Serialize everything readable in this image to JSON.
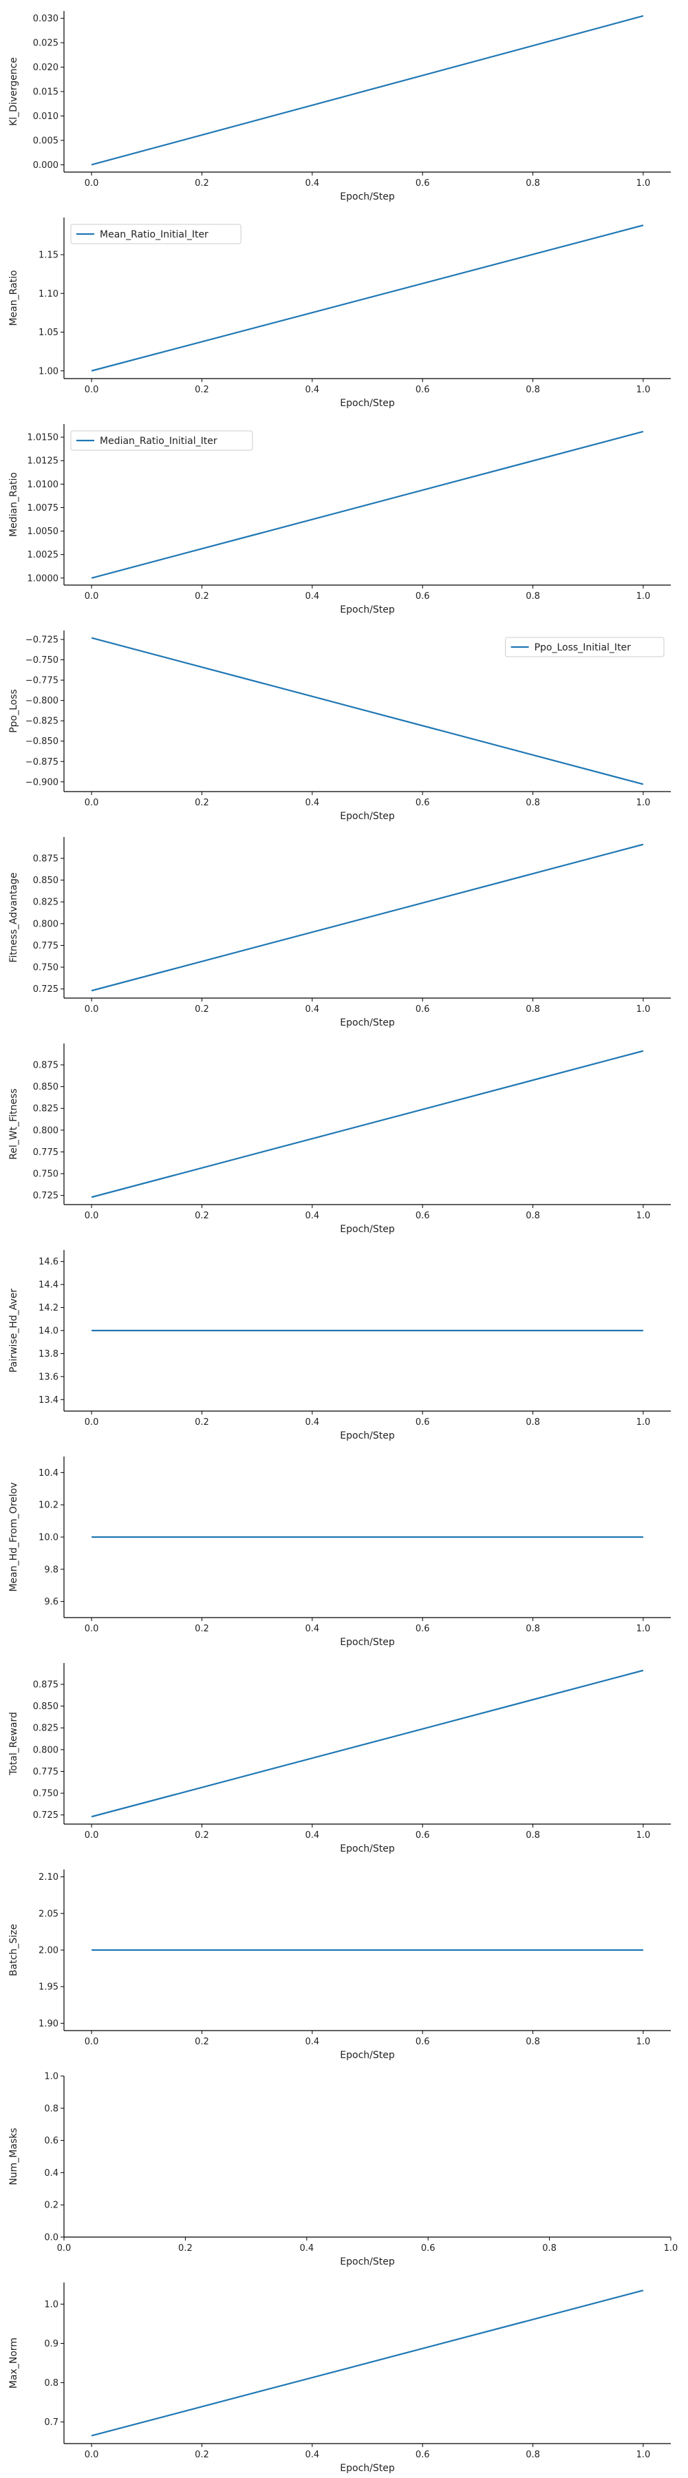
{
  "chart_data": [
    {
      "type": "line",
      "ylabel": "Kl_Divergence",
      "xlabel": "Epoch/Step",
      "x": [
        0.0,
        1.0
      ],
      "xlim": [
        -0.05,
        1.05
      ],
      "ylim": [
        -0.0015,
        0.0315
      ],
      "xticks": [
        0.0,
        0.2,
        0.4,
        0.6,
        0.8,
        1.0
      ],
      "xtick_labels": [
        "0.0",
        "0.2",
        "0.4",
        "0.6",
        "0.8",
        "1.0"
      ],
      "yticks": [
        0.0,
        0.005,
        0.01,
        0.015,
        0.02,
        0.025,
        0.03
      ],
      "ytick_labels": [
        "0.000",
        "0.005",
        "0.010",
        "0.015",
        "0.020",
        "0.025",
        "0.030"
      ],
      "series": [
        {
          "values": [
            0.0,
            0.0305
          ],
          "color": "#1f77b4"
        }
      ],
      "legend": null,
      "grid": false
    },
    {
      "type": "line",
      "ylabel": "Mean_Ratio",
      "xlabel": "Epoch/Step",
      "x": [
        0.0,
        1.0
      ],
      "xlim": [
        -0.05,
        1.05
      ],
      "ylim": [
        0.99,
        1.198
      ],
      "xticks": [
        0.0,
        0.2,
        0.4,
        0.6,
        0.8,
        1.0
      ],
      "xtick_labels": [
        "0.0",
        "0.2",
        "0.4",
        "0.6",
        "0.8",
        "1.0"
      ],
      "yticks": [
        1.0,
        1.05,
        1.1,
        1.15
      ],
      "ytick_labels": [
        "1.00",
        "1.05",
        "1.10",
        "1.15"
      ],
      "series": [
        {
          "name": "Mean_Ratio_Initial_Iter",
          "values": [
            1.0,
            1.188
          ],
          "color": "#1f77b4"
        }
      ],
      "legend": "top-left",
      "grid": false
    },
    {
      "type": "line",
      "ylabel": "Median_Ratio",
      "xlabel": "Epoch/Step",
      "x": [
        0.0,
        1.0
      ],
      "xlim": [
        -0.05,
        1.05
      ],
      "ylim": [
        0.99925,
        1.0164
      ],
      "xticks": [
        0.0,
        0.2,
        0.4,
        0.6,
        0.8,
        1.0
      ],
      "xtick_labels": [
        "0.0",
        "0.2",
        "0.4",
        "0.6",
        "0.8",
        "1.0"
      ],
      "yticks": [
        1.0,
        1.0025,
        1.005,
        1.0075,
        1.01,
        1.0125,
        1.015
      ],
      "ytick_labels": [
        "1.0000",
        "1.0025",
        "1.0050",
        "1.0075",
        "1.0100",
        "1.0125",
        "1.0150"
      ],
      "series": [
        {
          "name": "Median_Ratio_Initial_Iter",
          "values": [
            1.0,
            1.0156
          ],
          "color": "#1f77b4"
        }
      ],
      "legend": "top-left",
      "grid": false
    },
    {
      "type": "line",
      "ylabel": "Ppo_Loss",
      "xlabel": "Epoch/Step",
      "x": [
        0.0,
        1.0
      ],
      "xlim": [
        -0.05,
        1.05
      ],
      "ylim": [
        -0.912,
        -0.714
      ],
      "xticks": [
        0.0,
        0.2,
        0.4,
        0.6,
        0.8,
        1.0
      ],
      "xtick_labels": [
        "0.0",
        "0.2",
        "0.4",
        "0.6",
        "0.8",
        "1.0"
      ],
      "yticks": [
        -0.725,
        -0.75,
        -0.775,
        -0.8,
        -0.825,
        -0.85,
        -0.875,
        -0.9
      ],
      "ytick_labels": [
        "−0.725",
        "−0.750",
        "−0.775",
        "−0.800",
        "−0.825",
        "−0.850",
        "−0.875",
        "−0.900"
      ],
      "series": [
        {
          "name": "Ppo_Loss_Initial_Iter",
          "values": [
            -0.723,
            -0.903
          ],
          "color": "#1f77b4"
        }
      ],
      "legend": "top-right",
      "grid": false
    },
    {
      "type": "line",
      "ylabel": "Fitness_Advantage",
      "xlabel": "Epoch/Step",
      "x": [
        0.0,
        1.0
      ],
      "xlim": [
        -0.05,
        1.05
      ],
      "ylim": [
        0.7145,
        0.8995
      ],
      "xticks": [
        0.0,
        0.2,
        0.4,
        0.6,
        0.8,
        1.0
      ],
      "xtick_labels": [
        "0.0",
        "0.2",
        "0.4",
        "0.6",
        "0.8",
        "1.0"
      ],
      "yticks": [
        0.725,
        0.75,
        0.775,
        0.8,
        0.825,
        0.85,
        0.875
      ],
      "ytick_labels": [
        "0.725",
        "0.750",
        "0.775",
        "0.800",
        "0.825",
        "0.850",
        "0.875"
      ],
      "series": [
        {
          "values": [
            0.723,
            0.891
          ],
          "color": "#1f77b4"
        }
      ],
      "legend": null,
      "grid": false
    },
    {
      "type": "line",
      "ylabel": "Rel_Wt_Fitness",
      "xlabel": "Epoch/Step",
      "x": [
        0.0,
        1.0
      ],
      "xlim": [
        -0.05,
        1.05
      ],
      "ylim": [
        0.7145,
        0.8995
      ],
      "xticks": [
        0.0,
        0.2,
        0.4,
        0.6,
        0.8,
        1.0
      ],
      "xtick_labels": [
        "0.0",
        "0.2",
        "0.4",
        "0.6",
        "0.8",
        "1.0"
      ],
      "yticks": [
        0.725,
        0.75,
        0.775,
        0.8,
        0.825,
        0.85,
        0.875
      ],
      "ytick_labels": [
        "0.725",
        "0.750",
        "0.775",
        "0.800",
        "0.825",
        "0.850",
        "0.875"
      ],
      "series": [
        {
          "values": [
            0.723,
            0.891
          ],
          "color": "#1f77b4"
        }
      ],
      "legend": null,
      "grid": false
    },
    {
      "type": "line",
      "ylabel": "Pairwise_Hd_Aver",
      "xlabel": "Epoch/Step",
      "x": [
        0.0,
        1.0
      ],
      "xlim": [
        -0.05,
        1.05
      ],
      "ylim": [
        13.3,
        14.7
      ],
      "xticks": [
        0.0,
        0.2,
        0.4,
        0.6,
        0.8,
        1.0
      ],
      "xtick_labels": [
        "0.0",
        "0.2",
        "0.4",
        "0.6",
        "0.8",
        "1.0"
      ],
      "yticks": [
        13.4,
        13.6,
        13.8,
        14.0,
        14.2,
        14.4,
        14.6
      ],
      "ytick_labels": [
        "13.4",
        "13.6",
        "13.8",
        "14.0",
        "14.2",
        "14.4",
        "14.6"
      ],
      "series": [
        {
          "values": [
            14.0,
            14.0
          ],
          "color": "#1f77b4"
        }
      ],
      "legend": null,
      "grid": false
    },
    {
      "type": "line",
      "ylabel": "Mean_Hd_From_Orelov",
      "xlabel": "Epoch/Step",
      "x": [
        0.0,
        1.0
      ],
      "xlim": [
        -0.05,
        1.05
      ],
      "ylim": [
        9.5,
        10.5
      ],
      "xticks": [
        0.0,
        0.2,
        0.4,
        0.6,
        0.8,
        1.0
      ],
      "xtick_labels": [
        "0.0",
        "0.2",
        "0.4",
        "0.6",
        "0.8",
        "1.0"
      ],
      "yticks": [
        9.6,
        9.8,
        10.0,
        10.2,
        10.4
      ],
      "ytick_labels": [
        "9.6",
        "9.8",
        "10.0",
        "10.2",
        "10.4"
      ],
      "series": [
        {
          "values": [
            10.0,
            10.0
          ],
          "color": "#1f77b4"
        }
      ],
      "legend": null,
      "grid": false
    },
    {
      "type": "line",
      "ylabel": "Total_Reward",
      "xlabel": "Epoch/Step",
      "x": [
        0.0,
        1.0
      ],
      "xlim": [
        -0.05,
        1.05
      ],
      "ylim": [
        0.7145,
        0.8995
      ],
      "xticks": [
        0.0,
        0.2,
        0.4,
        0.6,
        0.8,
        1.0
      ],
      "xtick_labels": [
        "0.0",
        "0.2",
        "0.4",
        "0.6",
        "0.8",
        "1.0"
      ],
      "yticks": [
        0.725,
        0.75,
        0.775,
        0.8,
        0.825,
        0.85,
        0.875
      ],
      "ytick_labels": [
        "0.725",
        "0.750",
        "0.775",
        "0.800",
        "0.825",
        "0.850",
        "0.875"
      ],
      "series": [
        {
          "values": [
            0.723,
            0.891
          ],
          "color": "#1f77b4"
        }
      ],
      "legend": null,
      "grid": false
    },
    {
      "type": "line",
      "ylabel": "Batch_Size",
      "xlabel": "Epoch/Step",
      "x": [
        0.0,
        1.0
      ],
      "xlim": [
        -0.05,
        1.05
      ],
      "ylim": [
        1.89,
        2.11
      ],
      "xticks": [
        0.0,
        0.2,
        0.4,
        0.6,
        0.8,
        1.0
      ],
      "xtick_labels": [
        "0.0",
        "0.2",
        "0.4",
        "0.6",
        "0.8",
        "1.0"
      ],
      "yticks": [
        1.9,
        1.95,
        2.0,
        2.05,
        2.1
      ],
      "ytick_labels": [
        "1.90",
        "1.95",
        "2.00",
        "2.05",
        "2.10"
      ],
      "series": [
        {
          "values": [
            2.0,
            2.0
          ],
          "color": "#1f77b4"
        }
      ],
      "legend": null,
      "grid": false
    },
    {
      "type": "line",
      "ylabel": "Num_Masks",
      "xlabel": "Epoch/Step",
      "x": [],
      "xlim": [
        0.0,
        1.0
      ],
      "ylim": [
        0.0,
        1.0
      ],
      "xticks": [
        0.0,
        0.2,
        0.4,
        0.6,
        0.8,
        1.0
      ],
      "xtick_labels": [
        "0.0",
        "0.2",
        "0.4",
        "0.6",
        "0.8",
        "1.0"
      ],
      "yticks": [
        0.0,
        0.2,
        0.4,
        0.6,
        0.8,
        1.0
      ],
      "ytick_labels": [
        "0.0",
        "0.2",
        "0.4",
        "0.6",
        "0.8",
        "1.0"
      ],
      "series": [],
      "legend": null,
      "grid": false
    },
    {
      "type": "line",
      "ylabel": "Max_Norm",
      "xlabel": "Epoch/Step",
      "x": [
        0.0,
        1.0
      ],
      "xlim": [
        -0.05,
        1.05
      ],
      "ylim": [
        0.645,
        1.055
      ],
      "xticks": [
        0.0,
        0.2,
        0.4,
        0.6,
        0.8,
        1.0
      ],
      "xtick_labels": [
        "0.0",
        "0.2",
        "0.4",
        "0.6",
        "0.8",
        "1.0"
      ],
      "yticks": [
        0.7,
        0.8,
        0.9,
        1.0
      ],
      "ytick_labels": [
        "0.7",
        "0.8",
        "0.9",
        "1.0"
      ],
      "series": [
        {
          "values": [
            0.665,
            1.035
          ],
          "color": "#1f77b4"
        }
      ],
      "legend": null,
      "grid": false
    }
  ]
}
